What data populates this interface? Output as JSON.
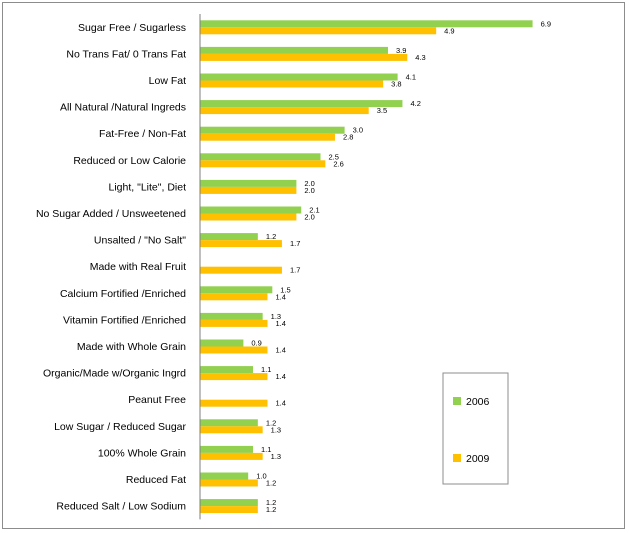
{
  "chart_data": {
    "type": "bar",
    "orientation": "horizontal",
    "title": "",
    "xlabel": "",
    "ylabel": "",
    "xlim": [
      0,
      7.9
    ],
    "grid": false,
    "legend_position": "right",
    "categories": [
      "Sugar Free / Sugarless",
      "No Trans Fat/ 0 Trans Fat",
      "Low Fat",
      "All Natural /Natural Ingreds",
      "Fat-Free / Non-Fat",
      "Reduced or Low Calorie",
      "Light, \"Lite\", Diet",
      "No Sugar Added  / Unsweetened",
      "Unsalted / \"No Salt\"",
      "Made with Real Fruit",
      "Calcium Fortified /Enriched",
      "Vitamin Fortified /Enriched",
      "Made with Whole Grain",
      "Organic/Made w/Organic Ingrd",
      "Peanut Free",
      "Low Sugar / Reduced Sugar",
      "100% Whole Grain",
      "Reduced Fat",
      "Reduced Salt / Low Sodium"
    ],
    "series": [
      {
        "name": "2006",
        "color": "#92d050",
        "values": [
          6.9,
          3.9,
          4.1,
          4.2,
          3.0,
          2.5,
          2.0,
          2.1,
          1.2,
          null,
          1.5,
          1.3,
          0.9,
          1.1,
          null,
          1.2,
          1.1,
          1.0,
          1.2
        ],
        "labels": [
          "6.9",
          "3.9",
          "4.1",
          "4.2",
          "3.0",
          "2.5",
          "2.0",
          "2.1",
          "1.2",
          "",
          "1.5",
          "1.3",
          "0.9",
          "1.1",
          "",
          "1.2",
          "1.1",
          "1.0",
          "1.2"
        ]
      },
      {
        "name": "2009",
        "color": "#ffc000",
        "values": [
          4.9,
          4.3,
          3.8,
          3.5,
          2.8,
          2.6,
          2.0,
          2.0,
          1.7,
          1.7,
          1.4,
          1.4,
          1.4,
          1.4,
          1.4,
          1.3,
          1.3,
          1.2,
          1.2
        ],
        "labels": [
          "4.9",
          "4.3",
          "3.8",
          "3.5",
          "2.8",
          "2.6",
          "2.0",
          "2.0",
          "1.7",
          "1.7",
          "1.4",
          "1.4",
          "1.4",
          "1.4",
          "1.4",
          "1.3",
          "1.3",
          "1.2",
          "1.2"
        ]
      }
    ]
  }
}
